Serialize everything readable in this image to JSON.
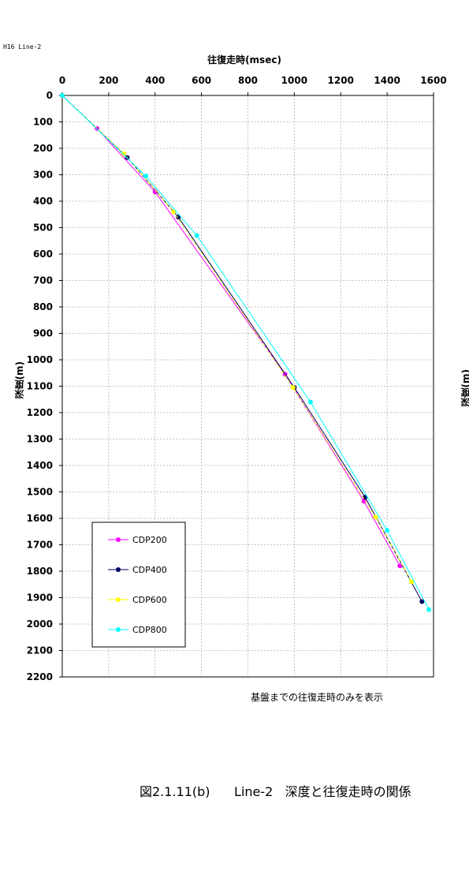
{
  "header": {
    "tag": "H16  Line-2"
  },
  "note": "基盤までの往復走時のみを表示",
  "caption": "図2.1.11(b)      Line-2   深度と往復走時の関係",
  "chart_data": {
    "type": "line",
    "xlabel": "往復走時(msec)",
    "ylabel": "深度(m)",
    "ylabel_right": "深度(m)",
    "xlim": [
      0,
      1600
    ],
    "ylim": [
      0,
      2200
    ],
    "y_inverted": true,
    "x_axis_position": "top",
    "grid": true,
    "xticks": [
      0,
      200,
      400,
      600,
      800,
      1000,
      1200,
      1400,
      1600
    ],
    "yticks": [
      0,
      100,
      200,
      300,
      400,
      500,
      600,
      700,
      800,
      900,
      1000,
      1100,
      1200,
      1300,
      1400,
      1500,
      1600,
      1700,
      1800,
      1900,
      2000,
      2100,
      2200
    ],
    "legend_position": "bottom-left",
    "series": [
      {
        "name": "CDP200",
        "color": "#ff00ff",
        "dashed": false,
        "x": [
          0,
          150,
          400,
          960,
          1300,
          1455
        ],
        "y": [
          0,
          125,
          365,
          1055,
          1535,
          1780
        ]
      },
      {
        "name": "CDP400",
        "color": "#000066",
        "dashed": false,
        "x": [
          0,
          280,
          500,
          1000,
          1305,
          1550
        ],
        "y": [
          0,
          235,
          460,
          1105,
          1520,
          1915
        ]
      },
      {
        "name": "CDP600",
        "color": "#ffff00",
        "dashed": true,
        "x": [
          0,
          265,
          480,
          995,
          1350,
          1505
        ],
        "y": [
          0,
          220,
          440,
          1105,
          1595,
          1840
        ]
      },
      {
        "name": "CDP800",
        "color": "#00ffff",
        "dashed": false,
        "x": [
          0,
          360,
          580,
          1070,
          1400,
          1580
        ],
        "y": [
          0,
          305,
          530,
          1160,
          1645,
          1945
        ]
      }
    ]
  }
}
